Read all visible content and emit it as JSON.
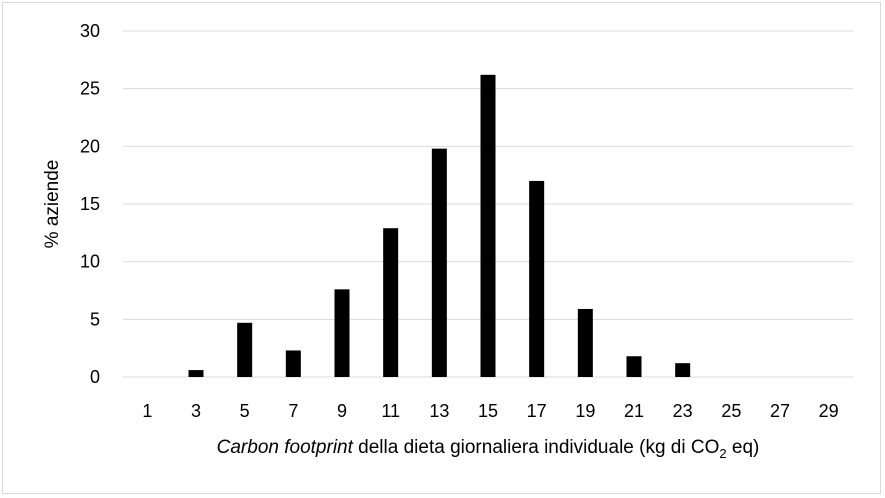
{
  "chart_data": {
    "type": "bar",
    "categories": [
      "1",
      "3",
      "5",
      "7",
      "9",
      "11",
      "13",
      "15",
      "17",
      "19",
      "21",
      "23",
      "25",
      "27",
      "29"
    ],
    "values": [
      0,
      0.6,
      4.7,
      2.3,
      7.6,
      12.9,
      19.8,
      26.2,
      17.0,
      5.9,
      1.8,
      1.2,
      0,
      0,
      0
    ],
    "xlabel_italic": "Carbon footprint",
    "xlabel_rest": " della dieta giornaliera individuale (kg di CO",
    "xlabel_sub": "2",
    "xlabel_end": " eq)",
    "ylabel": "% aziende",
    "ylim": [
      0,
      30
    ],
    "yticks": [
      "0",
      "5",
      "10",
      "15",
      "20",
      "25",
      "30"
    ],
    "grid": true,
    "bar_color": "#000000",
    "grid_color": "#d9d9d9"
  }
}
